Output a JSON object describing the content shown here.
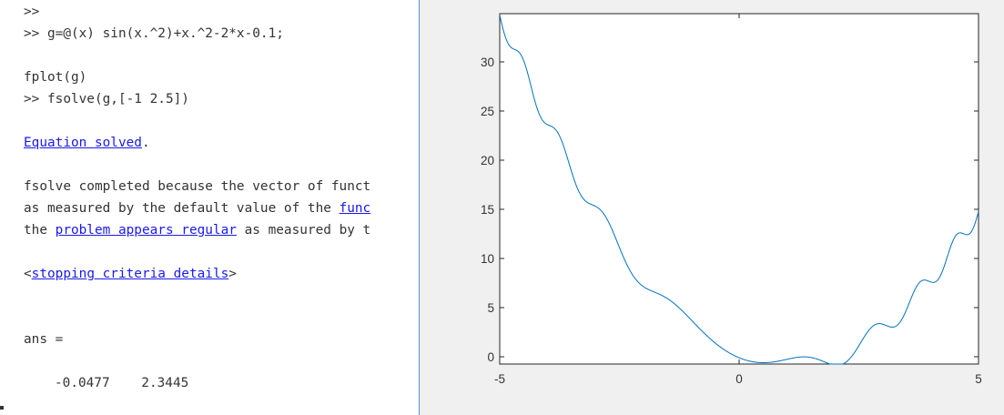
{
  "console": {
    "prompt_empty": ">>",
    "cmd1": ">> g=@(x) sin(x.^2)+x.^2-2*x-0.1;",
    "cmd2": "fplot(g)",
    "cmd3": ">> fsolve(g,[-1 2.5])",
    "eq_solved_link": "Equation solved",
    "eq_solved_period": ".",
    "msg_line1": "fsolve completed because the vector of funct",
    "msg_line2_prefix": "as measured by the default value of the ",
    "msg_line2_link": "func",
    "msg_line3_prefix": "the ",
    "msg_line3_link": "problem appears regular",
    "msg_line3_suffix": " as measured by t",
    "stop_open": "<",
    "stop_link": "stopping criteria details",
    "stop_close": ">",
    "ans_label": "ans =",
    "ans_values": "   -0.0477    2.3445"
  },
  "chart_data": {
    "type": "line",
    "title": "",
    "xlabel": "",
    "ylabel": "",
    "xlim": [
      -5,
      5
    ],
    "ylim": [
      -0.5,
      35
    ],
    "xticks": [
      "-5",
      "0",
      "5"
    ],
    "yticks": [
      "0",
      "5",
      "10",
      "15",
      "20",
      "25",
      "30"
    ],
    "function": "sin(x.^2)+x.^2-2*x-0.1",
    "line_color": "#0072bd",
    "grid": false,
    "box": true
  }
}
